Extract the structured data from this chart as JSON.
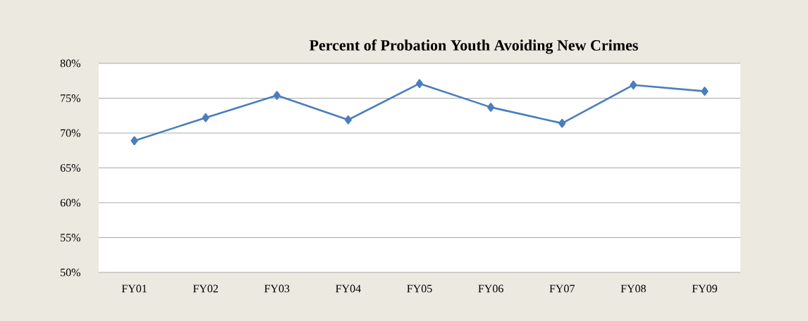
{
  "chart_data": {
    "type": "line",
    "title": "Percent of Probation Youth Avoiding New Crimes",
    "categories": [
      "FY01",
      "FY02",
      "FY03",
      "FY04",
      "FY05",
      "FY06",
      "FY07",
      "FY08",
      "FY09"
    ],
    "series": [
      {
        "color": "#4a7ebb",
        "values": [
          68.9,
          72.2,
          75.4,
          71.9,
          77.1,
          73.7,
          71.4,
          76.9,
          76.0
        ]
      }
    ],
    "ylim": [
      50,
      80
    ],
    "yticks": [
      {
        "value": 50,
        "label": "50%"
      },
      {
        "value": 55,
        "label": "55%"
      },
      {
        "value": 60,
        "label": "60%"
      },
      {
        "value": 65,
        "label": "65%"
      },
      {
        "value": 70,
        "label": "70%"
      },
      {
        "value": 75,
        "label": "75%"
      },
      {
        "value": 80,
        "label": "80%"
      }
    ],
    "grid": "y",
    "marker": "diamond",
    "line_style": "solid"
  }
}
